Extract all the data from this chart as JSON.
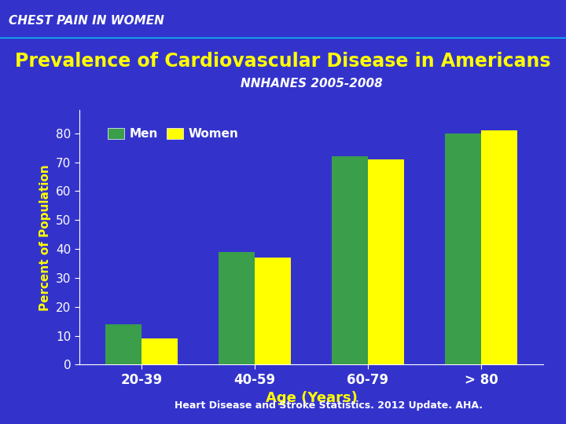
{
  "title": "Prevalence of Cardiovascular Disease in Americans",
  "subtitle": "NNHANES 2005-2008",
  "header_text": "CHEST PAIN IN WOMEN",
  "footer_text": "Heart Disease and Stroke Statistics. 2012 Update. AHA.",
  "xlabel": "Age (Years)",
  "ylabel": "Percent of Population",
  "categories": [
    "20-39",
    "40-59",
    "60-79",
    "> 80"
  ],
  "men_values": [
    14,
    39,
    72,
    80
  ],
  "women_values": [
    9,
    37,
    71,
    81
  ],
  "men_color": "#3a9e4a",
  "women_color": "#ffff00",
  "bg_color": "#3333cc",
  "header_bg": "#18a8cc",
  "header_line_color": "#00ddff",
  "title_color": "#ffff00",
  "subtitle_color": "#ffffff",
  "tick_color": "#ffffff",
  "axis_label_color": "#ffff00",
  "footer_color": "#ffffff",
  "header_text_color": "#ffffff",
  "ylim": [
    0,
    88
  ],
  "yticks": [
    0,
    10,
    20,
    30,
    40,
    50,
    60,
    70,
    80
  ],
  "bar_width": 0.32,
  "legend_labels": [
    "Men",
    "Women"
  ]
}
